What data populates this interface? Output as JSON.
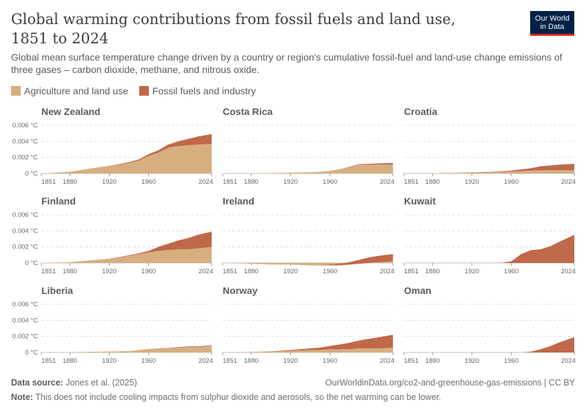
{
  "header": {
    "title": "Global warming contributions from fossil fuels and land use, 1851 to 2024",
    "subtitle": "Global mean surface temperature change driven by a country or region's cumulative fossil-fuel and land-use change emissions of three gases – carbon dioxide, methane, and nitrous oxide.",
    "logo_line1": "Our World",
    "logo_line2": "in Data"
  },
  "legend": [
    {
      "label": "Agriculture and land use",
      "color": "#d6ae80"
    },
    {
      "label": "Fossil fuels and industry",
      "color": "#c0684a"
    }
  ],
  "chart_data": {
    "type": "area",
    "stacked": true,
    "x": [
      1851,
      1880,
      1900,
      1920,
      1940,
      1950,
      1960,
      1970,
      1980,
      1990,
      2000,
      2010,
      2024
    ],
    "x_ticks": [
      "1851",
      "1880",
      "1920",
      "1960",
      "2024"
    ],
    "y_ticks": [
      "0 °C",
      "0.002 °C",
      "0.004 °C",
      "0.006 °C"
    ],
    "ylim": [
      0,
      0.006
    ],
    "grid": true,
    "legend_position": "top",
    "series_names": [
      "Agriculture and land use",
      "Fossil fuels and industry"
    ],
    "panels": [
      {
        "title": "New Zealand",
        "agriculture": [
          0,
          0.0002,
          0.0006,
          0.0009,
          0.0013,
          0.0016,
          0.0022,
          0.0026,
          0.0032,
          0.0034,
          0.0035,
          0.0036,
          0.0037
        ],
        "fossil": [
          0,
          0,
          0,
          3e-05,
          0.0001,
          0.00015,
          0.0002,
          0.0003,
          0.0004,
          0.0006,
          0.0008,
          0.001,
          0.0012
        ]
      },
      {
        "title": "Costa Rica",
        "agriculture": [
          0,
          2e-05,
          5e-05,
          0.0001,
          0.00015,
          0.0002,
          0.0003,
          0.0005,
          0.0008,
          0.0011,
          0.0011,
          0.0011,
          0.0011
        ],
        "fossil": [
          0,
          0,
          0,
          0,
          0,
          0,
          1e-05,
          2e-05,
          4e-05,
          7e-05,
          0.0001,
          0.00015,
          0.0002
        ]
      },
      {
        "title": "Croatia",
        "agriculture": [
          0,
          3e-05,
          6e-05,
          0.0001,
          0.00015,
          0.0002,
          0.00025,
          0.0003,
          0.00035,
          0.0004,
          0.0004,
          0.0004,
          0.0004
        ],
        "fossil": [
          0,
          0,
          1e-05,
          3e-05,
          5e-05,
          7e-05,
          0.0001,
          0.0002,
          0.0003,
          0.0005,
          0.0006,
          0.0007,
          0.0008
        ]
      },
      {
        "title": "Finland",
        "agriculture": [
          0,
          0.0001,
          0.0003,
          0.0005,
          0.0009,
          0.0011,
          0.0013,
          0.0015,
          0.0016,
          0.0017,
          0.0017,
          0.0018,
          0.002
        ],
        "fossil": [
          0,
          0,
          1e-05,
          3e-05,
          5e-05,
          0.0001,
          0.0002,
          0.0005,
          0.0008,
          0.0011,
          0.0014,
          0.0017,
          0.0019
        ]
      },
      {
        "title": "Ireland",
        "agriculture": [
          0,
          -0.0001,
          -0.0002,
          -0.0002,
          -0.0003,
          -0.0003,
          -0.0003,
          -0.0003,
          -0.0002,
          -0.0001,
          0,
          0.0001,
          0.0002
        ],
        "fossil": [
          0,
          0,
          0,
          0,
          0,
          3e-05,
          0.0001,
          0.0002,
          0.0003,
          0.0005,
          0.0007,
          0.0008,
          0.0009
        ]
      },
      {
        "title": "Kuwait",
        "agriculture": [
          0,
          0,
          0,
          0,
          0,
          0,
          0,
          0,
          0,
          0,
          0,
          0,
          0
        ],
        "fossil": [
          0,
          0,
          0,
          0,
          0,
          2e-05,
          0.0002,
          0.0011,
          0.0016,
          0.0017,
          0.0021,
          0.0027,
          0.0035
        ]
      },
      {
        "title": "Liberia",
        "agriculture": [
          0,
          3e-05,
          8e-05,
          0.00012,
          0.00015,
          0.0003,
          0.0004,
          0.00045,
          0.0005,
          0.0006,
          0.0007,
          0.0007,
          0.0008
        ],
        "fossil": [
          0,
          0,
          0,
          0,
          0,
          0,
          2e-05,
          4e-05,
          5e-05,
          6e-05,
          6e-05,
          7e-05,
          8e-05
        ]
      },
      {
        "title": "Norway",
        "agriculture": [
          0,
          5e-05,
          0.0001,
          0.0002,
          0.0003,
          0.0003,
          0.0004,
          0.0004,
          0.0004,
          0.0005,
          0.0005,
          0.0005,
          0.0006
        ],
        "fossil": [
          0,
          1e-05,
          3e-05,
          0.0001,
          0.0002,
          0.0003,
          0.0004,
          0.0006,
          0.0008,
          0.001,
          0.0012,
          0.0014,
          0.0016
        ]
      },
      {
        "title": "Oman",
        "agriculture": [
          0,
          0,
          0,
          0,
          0,
          0,
          0,
          0,
          0,
          0,
          0,
          0,
          0
        ],
        "fossil": [
          0,
          0,
          0,
          0,
          0,
          0,
          0,
          0,
          0.0001,
          0.0004,
          0.0008,
          0.0013,
          0.0019
        ]
      }
    ]
  },
  "footer": {
    "source_label": "Data source:",
    "source_value": "Jones et al. (2025)",
    "url": "OurWorldinData.org/co2-and-greenhouse-gas-emissions | CC BY",
    "note_label": "Note:",
    "note_value": "This does not include cooling impacts from sulphur dioxide and aerosols, so the net warming can be lower."
  }
}
